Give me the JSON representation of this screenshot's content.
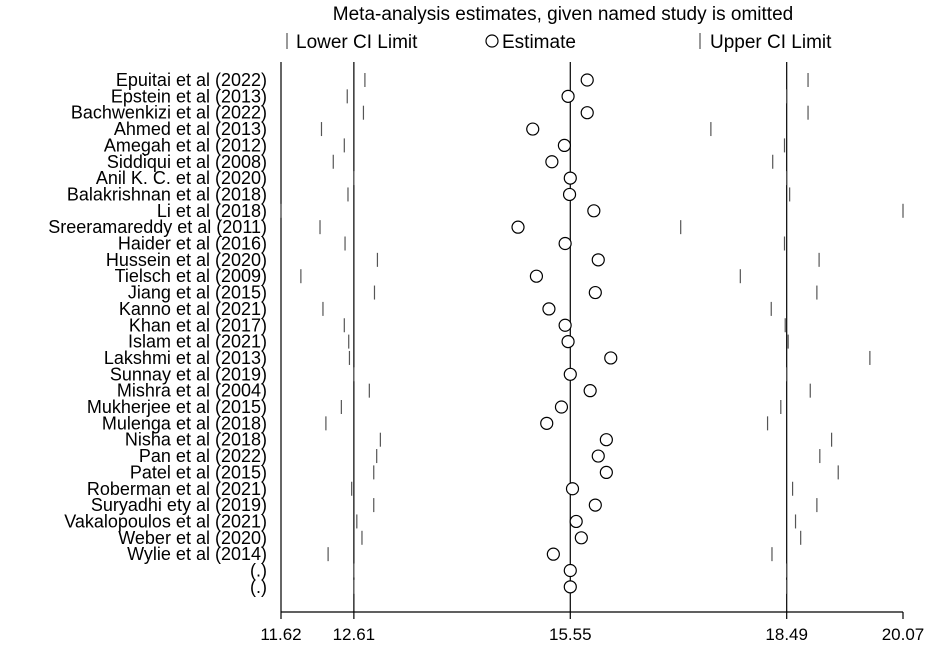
{
  "chart_data": {
    "type": "scatter",
    "title": "Meta-analysis estimates, given named study is omitted",
    "legend": {
      "placement": "top",
      "items": [
        {
          "label": "Lower CI Limit",
          "marker": "tick"
        },
        {
          "label": "Estimate",
          "marker": "circle"
        },
        {
          "label": "Upper CI Limit",
          "marker": "tick"
        }
      ]
    },
    "xlim": [
      11.62,
      20.07
    ],
    "xticks": [
      "11.62",
      "12.61",
      "15.55",
      "18.49",
      "20.07"
    ],
    "reference_lines": [
      12.61,
      15.55,
      18.49
    ],
    "grid": false,
    "studies": [
      {
        "name": "Epuitai et al (2022)",
        "lower": 12.76,
        "estimate": 15.78,
        "upper": 18.78
      },
      {
        "name": "Epstein et al (2013)",
        "lower": 12.52,
        "estimate": 15.52,
        "upper": 18.49
      },
      {
        "name": "Bachwenkizi et al (2022)",
        "lower": 12.74,
        "estimate": 15.78,
        "upper": 18.78
      },
      {
        "name": "Ahmed et al (2013)",
        "lower": 12.17,
        "estimate": 15.04,
        "upper": 17.46
      },
      {
        "name": "Amegah et al (2012)",
        "lower": 12.48,
        "estimate": 15.47,
        "upper": 18.46
      },
      {
        "name": "Siddiqui et al (2008)",
        "lower": 12.33,
        "estimate": 15.3,
        "upper": 18.3
      },
      {
        "name": "Anil K. C. et al (2020)",
        "lower": 12.61,
        "estimate": 15.55,
        "upper": 18.49
      },
      {
        "name": "Balakrishnan et al (2018)",
        "lower": 12.53,
        "estimate": 15.54,
        "upper": 18.53
      },
      {
        "name": "Li et al (2018)",
        "lower": 11.62,
        "estimate": 15.87,
        "upper": 20.07
      },
      {
        "name": "Sreeramareddy et al (2011)",
        "lower": 12.15,
        "estimate": 14.84,
        "upper": 17.05
      },
      {
        "name": "Haider et al (2016)",
        "lower": 12.49,
        "estimate": 15.48,
        "upper": 18.46
      },
      {
        "name": "Hussein et al (2020)",
        "lower": 12.93,
        "estimate": 15.93,
        "upper": 18.93
      },
      {
        "name": "Tielsch et al (2009)",
        "lower": 11.89,
        "estimate": 15.09,
        "upper": 17.86
      },
      {
        "name": "Jiang et al (2015)",
        "lower": 12.89,
        "estimate": 15.89,
        "upper": 18.9
      },
      {
        "name": "Kanno et al (2021)",
        "lower": 12.19,
        "estimate": 15.26,
        "upper": 18.28
      },
      {
        "name": "Khan et al (2017)",
        "lower": 12.48,
        "estimate": 15.48,
        "upper": 18.47
      },
      {
        "name": "Islam et al (2021)",
        "lower": 12.54,
        "estimate": 15.52,
        "upper": 18.51
      },
      {
        "name": "Lakshmi et al (2013)",
        "lower": 12.55,
        "estimate": 16.1,
        "upper": 19.62
      },
      {
        "name": "Sunnay et al (2019)",
        "lower": 12.61,
        "estimate": 15.55,
        "upper": 18.49
      },
      {
        "name": "Mishra et al (2004)",
        "lower": 12.82,
        "estimate": 15.82,
        "upper": 18.81
      },
      {
        "name": "Mukherjee et al (2015)",
        "lower": 12.44,
        "estimate": 15.43,
        "upper": 18.41
      },
      {
        "name": "Mulenga et al (2018)",
        "lower": 12.23,
        "estimate": 15.23,
        "upper": 18.23
      },
      {
        "name": "Nisha et al (2018)",
        "lower": 12.97,
        "estimate": 16.04,
        "upper": 19.1
      },
      {
        "name": "Pan et al (2022)",
        "lower": 12.92,
        "estimate": 15.93,
        "upper": 18.94
      },
      {
        "name": "Patel et al (2015)",
        "lower": 12.88,
        "estimate": 16.04,
        "upper": 19.19
      },
      {
        "name": "Roberman et al (2021)",
        "lower": 12.58,
        "estimate": 15.58,
        "upper": 18.57
      },
      {
        "name": "Suryadhi ety al (2019)",
        "lower": 12.88,
        "estimate": 15.89,
        "upper": 18.9
      },
      {
        "name": "Vakalopoulos et al (2021)",
        "lower": 12.65,
        "estimate": 15.63,
        "upper": 18.61
      },
      {
        "name": "Weber et al (2020)",
        "lower": 12.72,
        "estimate": 15.7,
        "upper": 18.68
      },
      {
        "name": "Wylie et al (2014)",
        "lower": 12.26,
        "estimate": 15.32,
        "upper": 18.29
      },
      {
        "name": "(.)",
        "lower": 12.61,
        "estimate": 15.55,
        "upper": 18.49
      },
      {
        "name": "(.)",
        "lower": 12.61,
        "estimate": 15.55,
        "upper": 18.49
      }
    ]
  }
}
